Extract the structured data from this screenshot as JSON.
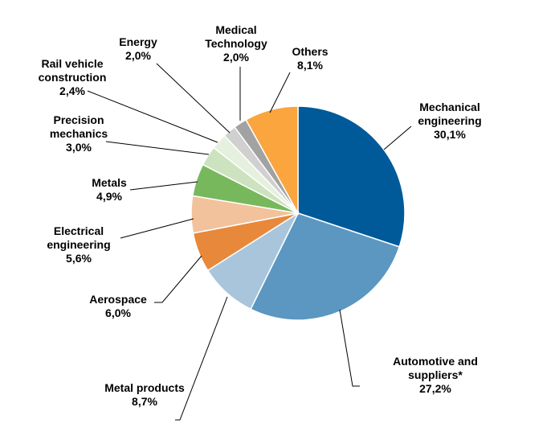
{
  "chart_data": {
    "type": "pie",
    "title": "",
    "slices": [
      {
        "label_lines": [
          "Mechanical",
          "engineering"
        ],
        "value_label": "30,1%",
        "value": 30.1,
        "color": "#005a9a"
      },
      {
        "label_lines": [
          "Automotive and",
          "suppliers*"
        ],
        "value_label": "27,2%",
        "value": 27.2,
        "color": "#5b97c0"
      },
      {
        "label_lines": [
          "Metal products"
        ],
        "value_label": "8,7%",
        "value": 8.7,
        "color": "#a8c5dc"
      },
      {
        "label_lines": [
          "Aerospace"
        ],
        "value_label": "6,0%",
        "value": 6.0,
        "color": "#e8883b"
      },
      {
        "label_lines": [
          "Electrical",
          "engineering"
        ],
        "value_label": "5,6%",
        "value": 5.6,
        "color": "#f2c29c"
      },
      {
        "label_lines": [
          "Metals"
        ],
        "value_label": "4,9%",
        "value": 4.9,
        "color": "#77b85c"
      },
      {
        "label_lines": [
          "Precision",
          "mechanics"
        ],
        "value_label": "3,0%",
        "value": 3.0,
        "color": "#cde2be"
      },
      {
        "label_lines": [
          "Rail vehicle",
          "construction"
        ],
        "value_label": "2,4%",
        "value": 2.4,
        "color": "#e6f0de"
      },
      {
        "label_lines": [
          "Energy"
        ],
        "value_label": "2,0%",
        "value": 2.0,
        "color": "#d0d0d0"
      },
      {
        "label_lines": [
          "Medical",
          "Technology"
        ],
        "value_label": "2,0%",
        "value": 2.0,
        "color": "#a2a2a2"
      },
      {
        "label_lines": [
          "Others"
        ],
        "value_label": "8,1%",
        "value": 8.1,
        "color": "#fba53f"
      }
    ]
  }
}
